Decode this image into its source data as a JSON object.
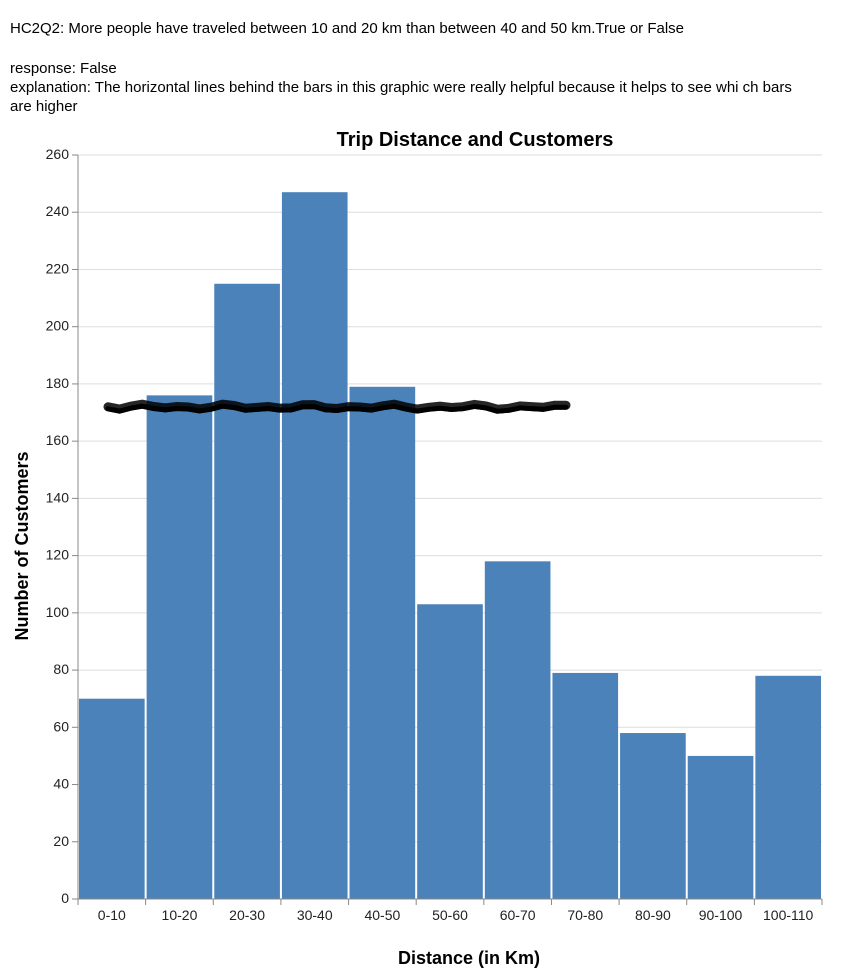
{
  "question": "HC2Q2: More people have traveled between 10 and 20 km than between 40 and 50 km.True or False",
  "response": "response: False",
  "explanation": "explanation: The horizontal lines behind the bars in this graphic were really helpful because it helps to see whi ch bars are higher",
  "colors": {
    "bar": "#4a82b9",
    "grid": "#dddddd",
    "axis": "#888888",
    "scribble": "#000000"
  },
  "chart_data": {
    "type": "bar",
    "title": "Trip Distance and Customers",
    "xlabel": "Distance (in Km)",
    "ylabel": "Number of Customers",
    "categories": [
      "0-10",
      "10-20",
      "20-30",
      "30-40",
      "40-50",
      "50-60",
      "60-70",
      "70-80",
      "80-90",
      "90-100",
      "100-110"
    ],
    "values": [
      70,
      176,
      215,
      247,
      179,
      103,
      118,
      79,
      58,
      50,
      78
    ],
    "ylim": [
      0,
      260
    ],
    "yticks": [
      0,
      20,
      40,
      60,
      80,
      100,
      120,
      140,
      160,
      180,
      200,
      220,
      240,
      260
    ],
    "grid": true,
    "annotation": {
      "type": "hand-drawn horizontal line",
      "y_value": 172
    }
  }
}
